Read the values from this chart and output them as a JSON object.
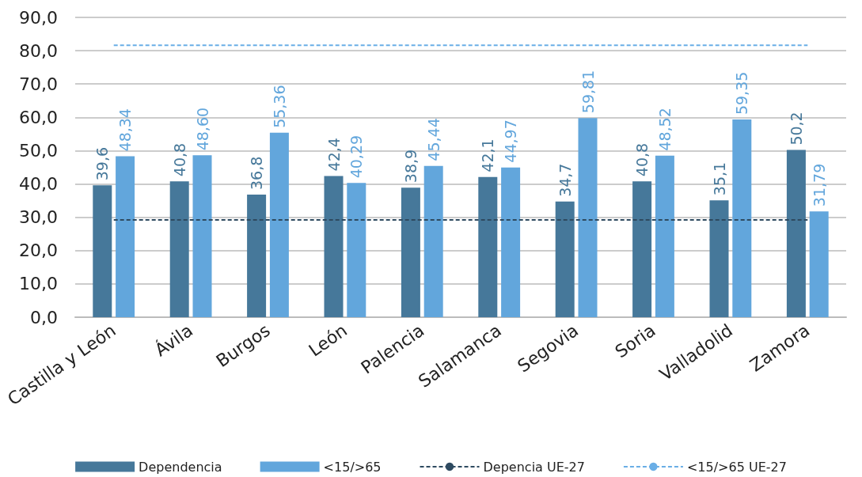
{
  "chart_data": {
    "type": "bar",
    "categories": [
      "Castilla y León",
      "Ávila",
      "Burgos",
      "León",
      "Palencia",
      "Salamanca",
      "Segovia",
      "Soria",
      "Valladolid",
      "Zamora"
    ],
    "series": [
      {
        "name": "Dependencia",
        "color": "#46789a",
        "values": [
          39.6,
          40.8,
          36.8,
          42.4,
          38.9,
          42.1,
          34.7,
          40.8,
          35.1,
          50.2
        ],
        "value_labels": [
          "39,6",
          "40,8",
          "36,8",
          "42,4",
          "38,9",
          "42,1",
          "34,7",
          "40,8",
          "35,1",
          "50,2"
        ]
      },
      {
        "name": "<15/>65",
        "color": "#62a6dc",
        "values": [
          48.34,
          48.6,
          55.36,
          40.29,
          45.44,
          44.97,
          59.81,
          48.52,
          59.35,
          31.79
        ],
        "value_labels": [
          "48,34",
          "48,60",
          "55,36",
          "40,29",
          "45,44",
          "44,97",
          "59,81",
          "48,52",
          "59,35",
          "31,79"
        ]
      },
      {
        "name": "Depencia UE-27",
        "type": "line",
        "color": "#2e4a60",
        "line_style": "dashed",
        "marker": "none",
        "values": [
          29.2,
          29.2,
          29.2,
          29.2,
          29.2,
          29.2,
          29.2,
          29.2,
          29.2,
          29.2
        ]
      },
      {
        "name": "<15/>65 UE-27",
        "type": "line",
        "color": "#6aaee6",
        "line_style": "dashed",
        "marker": "none",
        "values": [
          81.6,
          81.6,
          81.6,
          81.6,
          81.6,
          81.6,
          81.6,
          81.6,
          81.6,
          81.6
        ]
      }
    ],
    "ylim": [
      0,
      90
    ],
    "yticks": [
      {
        "value": 0,
        "label": "0,0"
      },
      {
        "value": 10,
        "label": "10,0"
      },
      {
        "value": 20,
        "label": "20,0"
      },
      {
        "value": 30,
        "label": "30,0"
      },
      {
        "value": 40,
        "label": "40,0"
      },
      {
        "value": 50,
        "label": "50,0"
      },
      {
        "value": 60,
        "label": "60,0"
      },
      {
        "value": 70,
        "label": "70,0"
      },
      {
        "value": 80,
        "label": "80,0"
      },
      {
        "value": 90,
        "label": "90,0"
      }
    ],
    "grid": "y",
    "legend": "bottom"
  }
}
